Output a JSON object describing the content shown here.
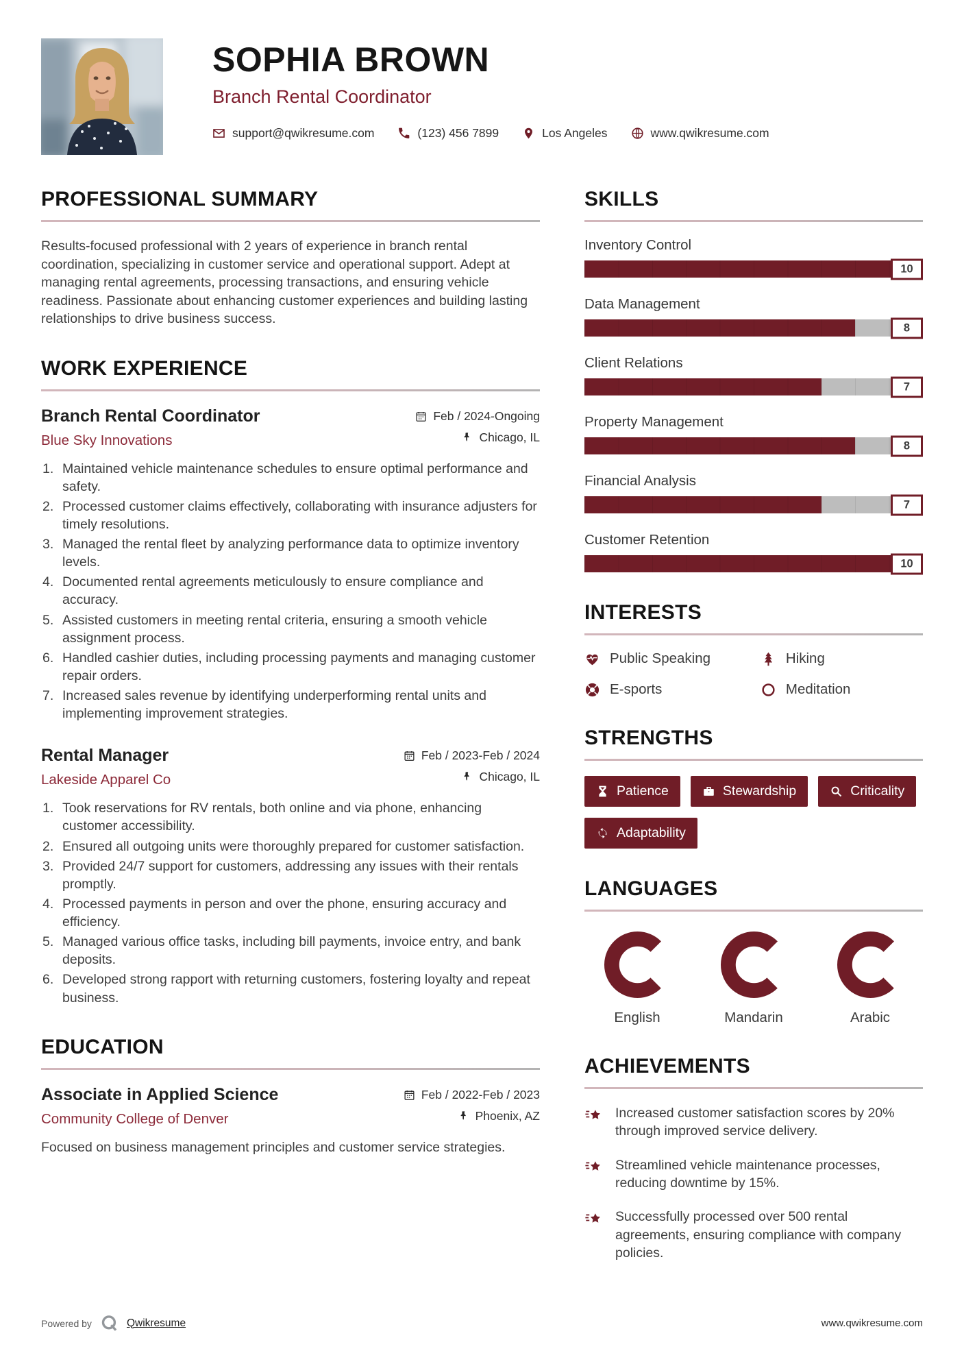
{
  "colors": {
    "accent": "#701d27",
    "subtitle": "#7f1f2e",
    "company": "#8d2b3a",
    "track": "#bdbdbd",
    "heading": "#141414",
    "text": "#3e3e3e"
  },
  "header": {
    "name": "SOPHIA BROWN",
    "title": "Branch Rental Coordinator",
    "photo_alt": "Portrait photo of a smiling woman with long blonde hair wearing a dark polka-dot top",
    "contacts": [
      {
        "icon": "envelope-icon",
        "label": "support@qwikresume.com"
      },
      {
        "icon": "phone-icon",
        "label": "(123) 456 7899"
      },
      {
        "icon": "pin-icon",
        "label": "Los Angeles"
      },
      {
        "icon": "globe-icon",
        "label": "www.qwikresume.com"
      }
    ]
  },
  "summary": {
    "heading": "PROFESSIONAL SUMMARY",
    "text": "Results-focused professional with 2 years of experience in branch rental coordination, specializing in customer service and operational support. Adept at managing rental agreements, processing transactions, and ensuring vehicle readiness. Passionate about enhancing customer experiences and building lasting relationships to drive business success."
  },
  "work": {
    "heading": "WORK EXPERIENCE",
    "jobs": [
      {
        "title": "Branch Rental Coordinator",
        "company": "Blue Sky Innovations",
        "date": "Feb / 2024-Ongoing",
        "location": "Chicago, IL",
        "bullets": [
          "Maintained vehicle maintenance schedules to ensure optimal performance and safety.",
          "Processed customer claims effectively, collaborating with insurance adjusters for timely resolutions.",
          "Managed the rental fleet by analyzing performance data to optimize inventory levels.",
          "Documented rental agreements meticulously to ensure compliance and accuracy.",
          "Assisted customers in meeting rental criteria, ensuring a smooth vehicle assignment process.",
          "Handled cashier duties, including processing payments and managing customer repair orders.",
          "Increased sales revenue by identifying underperforming rental units and implementing improvement strategies."
        ]
      },
      {
        "title": "Rental Manager",
        "company": "Lakeside Apparel Co",
        "date": "Feb / 2023-Feb / 2024",
        "location": "Chicago, IL",
        "bullets": [
          "Took reservations for RV rentals, both online and via phone, enhancing customer accessibility.",
          "Ensured all outgoing units were thoroughly prepared for customer satisfaction.",
          "Provided 24/7 support for customers, addressing any issues with their rentals promptly.",
          "Processed payments in person and over the phone, ensuring accuracy and efficiency.",
          "Managed various office tasks, including bill payments, invoice entry, and bank deposits.",
          "Developed strong rapport with returning customers, fostering loyalty and repeat business."
        ]
      }
    ]
  },
  "education": {
    "heading": "EDUCATION",
    "degree": "Associate in Applied Science",
    "school": "Community College of Denver",
    "date": "Feb / 2022-Feb / 2023",
    "location": "Phoenix, AZ",
    "text": "Focused on business management principles and customer service strategies."
  },
  "skills": {
    "heading": "SKILLS",
    "max_level": 10,
    "items": [
      {
        "label": "Inventory Control",
        "level": 10
      },
      {
        "label": "Data Management",
        "level": 8
      },
      {
        "label": "Client Relations",
        "level": 7
      },
      {
        "label": "Property Management",
        "level": 8
      },
      {
        "label": "Financial Analysis",
        "level": 7
      },
      {
        "label": "Customer Retention",
        "level": 10
      }
    ]
  },
  "interests": {
    "heading": "INTERESTS",
    "items": [
      {
        "icon": "heart-pulse-icon",
        "label": "Public Speaking"
      },
      {
        "icon": "tree-icon",
        "label": "Hiking"
      },
      {
        "icon": "lifebuoy-icon",
        "label": "E-sports"
      },
      {
        "icon": "circle-icon",
        "label": "Meditation"
      }
    ]
  },
  "strengths": {
    "heading": "STRENGTHS",
    "items": [
      {
        "icon": "hourglass-icon",
        "label": "Patience"
      },
      {
        "icon": "briefcase-icon",
        "label": "Stewardship"
      },
      {
        "icon": "magnifier-icon",
        "label": "Criticality"
      },
      {
        "icon": "refresh-icon",
        "label": "Adaptability"
      }
    ]
  },
  "languages": {
    "heading": "LANGUAGES",
    "items": [
      {
        "label": "English",
        "pct": 75
      },
      {
        "label": "Mandarin",
        "pct": 75
      },
      {
        "label": "Arabic",
        "pct": 75
      }
    ]
  },
  "achievements": {
    "heading": "ACHIEVEMENTS",
    "icon": "star-shooting-icon",
    "items": [
      {
        "icon": "star-shooting-icon",
        "text": "Increased customer satisfaction scores by 20% through improved service delivery."
      },
      {
        "icon": "star-shooting-icon",
        "text": "Streamlined vehicle maintenance processes, reducing downtime by 15%."
      },
      {
        "icon": "star-shooting-icon",
        "text": "Successfully processed over 500 rental agreements, ensuring compliance with company policies."
      }
    ]
  },
  "footer": {
    "powered_by": "Powered by",
    "brand": "Qwikresume",
    "site": "www.qwikresume.com"
  }
}
